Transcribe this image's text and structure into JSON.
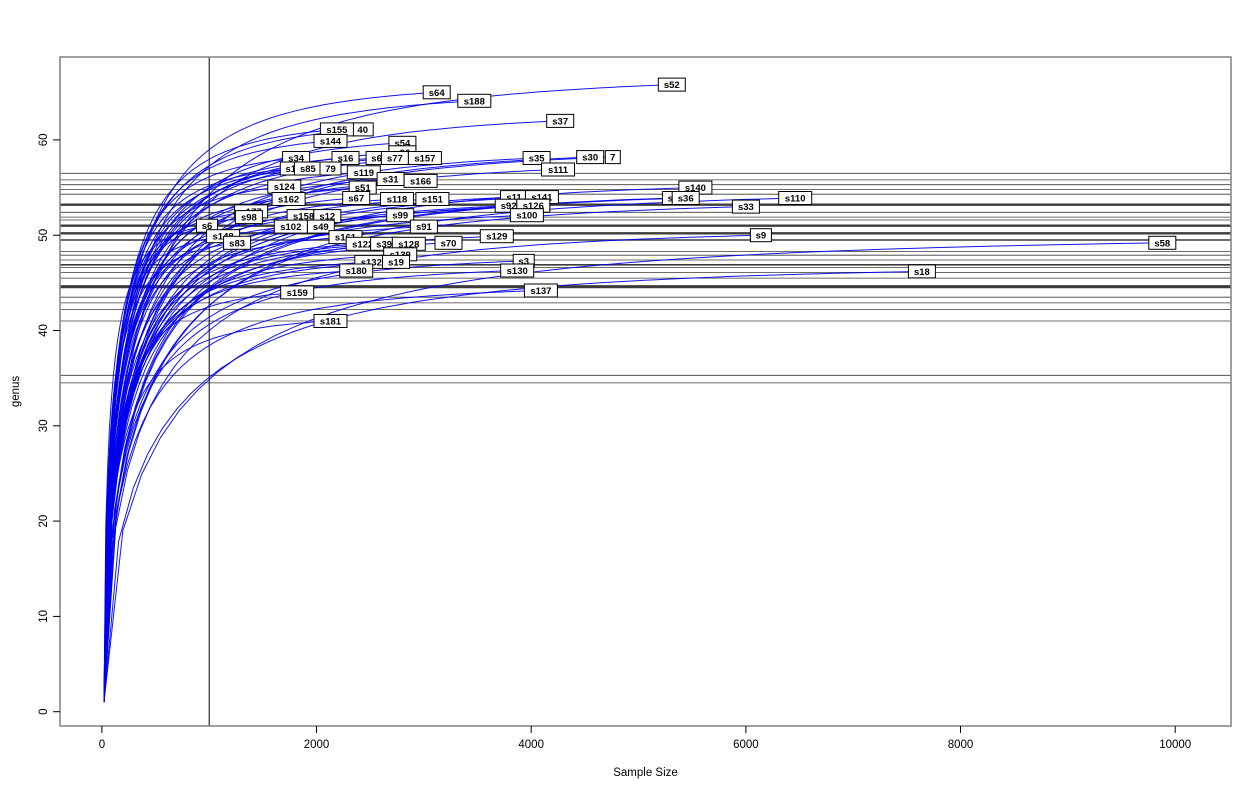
{
  "figure": {
    "background": "#ffffff",
    "frame_color": "#888888",
    "tick_color": "#000000",
    "text_color": "#000000"
  },
  "chart_data": {
    "type": "line",
    "title": "",
    "xlabel": "Sample Size",
    "ylabel": "genus",
    "x_ticks": [
      0,
      2000,
      4000,
      6000,
      8000,
      10000
    ],
    "y_ticks": [
      0,
      10,
      20,
      30,
      40,
      50,
      60
    ],
    "xlim": [
      -390,
      10520
    ],
    "ylim": [
      -1.5,
      68.7
    ],
    "grid": false,
    "legend": "none",
    "curve_color": "#0000EE",
    "hline_color": "#3c3c3c",
    "vline_color": "#000000",
    "vline_x": 1000,
    "curve_start": {
      "x": 20,
      "y": 1
    },
    "hlines": [
      {
        "y": 56.5,
        "w": 1
      },
      {
        "y": 55.8,
        "w": 1
      },
      {
        "y": 55.3,
        "w": 1
      },
      {
        "y": 54.8,
        "w": 1
      },
      {
        "y": 54.3,
        "w": 1
      },
      {
        "y": 53.2,
        "w": 3
      },
      {
        "y": 52.4,
        "w": 1
      },
      {
        "y": 51.9,
        "w": 1
      },
      {
        "y": 51.6,
        "w": 1
      },
      {
        "y": 51.0,
        "w": 3
      },
      {
        "y": 50.2,
        "w": 3
      },
      {
        "y": 49.5,
        "w": 2
      },
      {
        "y": 48.3,
        "w": 1
      },
      {
        "y": 47.9,
        "w": 1
      },
      {
        "y": 47.4,
        "w": 1
      },
      {
        "y": 46.9,
        "w": 2
      },
      {
        "y": 46.6,
        "w": 1
      },
      {
        "y": 46.1,
        "w": 1
      },
      {
        "y": 45.5,
        "w": 1
      },
      {
        "y": 44.6,
        "w": 4
      },
      {
        "y": 43.5,
        "w": 1
      },
      {
        "y": 42.9,
        "w": 1
      },
      {
        "y": 42.2,
        "w": 1
      },
      {
        "y": 41.0,
        "w": 1
      },
      {
        "y": 35.3,
        "w": 1
      },
      {
        "y": 34.5,
        "w": 1
      }
    ],
    "series": [
      {
        "label": "s64",
        "x": 3120,
        "y": 65.0
      },
      {
        "label": "s188",
        "x": 3470,
        "y": 64.1
      },
      {
        "label": "s52",
        "x": 5310,
        "y": 65.8
      },
      {
        "label": "s37",
        "x": 4270,
        "y": 62.0
      },
      {
        "label": "40",
        "x": 2430,
        "y": 61.1,
        "clipped": true
      },
      {
        "label": "s155",
        "x": 2190,
        "y": 61.1
      },
      {
        "label": "s144",
        "x": 2130,
        "y": 59.9
      },
      {
        "label": "s54",
        "x": 2800,
        "y": 59.7
      },
      {
        "label": "s96",
        "x": 2800,
        "y": 58.7
      },
      {
        "label": "s34",
        "x": 1810,
        "y": 58.1
      },
      {
        "label": "s16",
        "x": 2270,
        "y": 58.1
      },
      {
        "label": "s6",
        "x": 2560,
        "y": 58.1,
        "clipped": true
      },
      {
        "label": "s77",
        "x": 2730,
        "y": 58.1
      },
      {
        "label": "s157",
        "x": 3010,
        "y": 58.1
      },
      {
        "label": "s35",
        "x": 4050,
        "y": 58.1
      },
      {
        "label": "7",
        "x": 4760,
        "y": 58.2,
        "clipped": true
      },
      {
        "label": "s30",
        "x": 4550,
        "y": 58.2
      },
      {
        "label": "s1",
        "x": 1760,
        "y": 57.0,
        "clipped": true
      },
      {
        "label": "s85",
        "x": 1920,
        "y": 57.0
      },
      {
        "label": "79",
        "x": 2130,
        "y": 57.0,
        "clipped": true
      },
      {
        "label": "s111",
        "x": 4250,
        "y": 56.9
      },
      {
        "label": "s119",
        "x": 2440,
        "y": 56.6
      },
      {
        "label": "s31",
        "x": 2690,
        "y": 55.9
      },
      {
        "label": "s166",
        "x": 2970,
        "y": 55.7
      },
      {
        "label": "s124",
        "x": 1700,
        "y": 55.1
      },
      {
        "label": "s51",
        "x": 2430,
        "y": 55.0
      },
      {
        "label": "s140",
        "x": 5530,
        "y": 55.0
      },
      {
        "label": "s67",
        "x": 2370,
        "y": 53.9
      },
      {
        "label": "s162",
        "x": 1740,
        "y": 53.8
      },
      {
        "label": "s118",
        "x": 2750,
        "y": 53.8
      },
      {
        "label": "s151",
        "x": 3080,
        "y": 53.8
      },
      {
        "label": "s11",
        "x": 3840,
        "y": 54.0
      },
      {
        "label": "s141",
        "x": 4100,
        "y": 54.0
      },
      {
        "label": "s1",
        "x": 5320,
        "y": 53.9,
        "clipped": true
      },
      {
        "label": "s36",
        "x": 5440,
        "y": 53.9
      },
      {
        "label": "s110",
        "x": 6460,
        "y": 53.9
      },
      {
        "label": "s92",
        "x": 3790,
        "y": 53.1
      },
      {
        "label": "s126",
        "x": 4020,
        "y": 53.1,
        "clipped": true
      },
      {
        "label": "s33",
        "x": 6000,
        "y": 53.0
      },
      {
        "label": "s177",
        "x": 1390,
        "y": 52.5
      },
      {
        "label": "s98",
        "x": 1370,
        "y": 51.9
      },
      {
        "label": "s158",
        "x": 1880,
        "y": 52.0
      },
      {
        "label": "s12",
        "x": 2100,
        "y": 52.0
      },
      {
        "label": "s99",
        "x": 2780,
        "y": 52.1
      },
      {
        "label": "s126",
        "x": 4020,
        "y": 53.1,
        "clipped": true
      },
      {
        "label": "s100",
        "x": 3960,
        "y": 52.1
      },
      {
        "label": "s6",
        "x": 980,
        "y": 51.0
      },
      {
        "label": "s49",
        "x": 2040,
        "y": 50.9,
        "clipped": true
      },
      {
        "label": "s102",
        "x": 1760,
        "y": 50.9
      },
      {
        "label": "s91",
        "x": 3000,
        "y": 50.9
      },
      {
        "label": "s148",
        "x": 1130,
        "y": 49.9
      },
      {
        "label": "s161",
        "x": 2270,
        "y": 49.8
      },
      {
        "label": "s129",
        "x": 3680,
        "y": 49.9
      },
      {
        "label": "s9",
        "x": 6140,
        "y": 50.0
      },
      {
        "label": "s83",
        "x": 1260,
        "y": 49.2
      },
      {
        "label": "s122",
        "x": 2430,
        "y": 49.1
      },
      {
        "label": "s39",
        "x": 2630,
        "y": 49.1
      },
      {
        "label": "s128",
        "x": 2860,
        "y": 49.1
      },
      {
        "label": "s70",
        "x": 3230,
        "y": 49.2
      },
      {
        "label": "s58",
        "x": 9880,
        "y": 49.2
      },
      {
        "label": "s139",
        "x": 2780,
        "y": 48.0
      },
      {
        "label": "s132",
        "x": 2510,
        "y": 47.2
      },
      {
        "label": "s19",
        "x": 2740,
        "y": 47.2
      },
      {
        "label": "s3",
        "x": 3930,
        "y": 47.3
      },
      {
        "label": "s180",
        "x": 2370,
        "y": 46.3
      },
      {
        "label": "s130",
        "x": 3870,
        "y": 46.3
      },
      {
        "label": "s18",
        "x": 7640,
        "y": 46.2
      },
      {
        "label": "s137",
        "x": 4090,
        "y": 44.2
      },
      {
        "label": "s159",
        "x": 1820,
        "y": 44.0
      },
      {
        "label": "s181",
        "x": 2130,
        "y": 41.0
      }
    ]
  }
}
